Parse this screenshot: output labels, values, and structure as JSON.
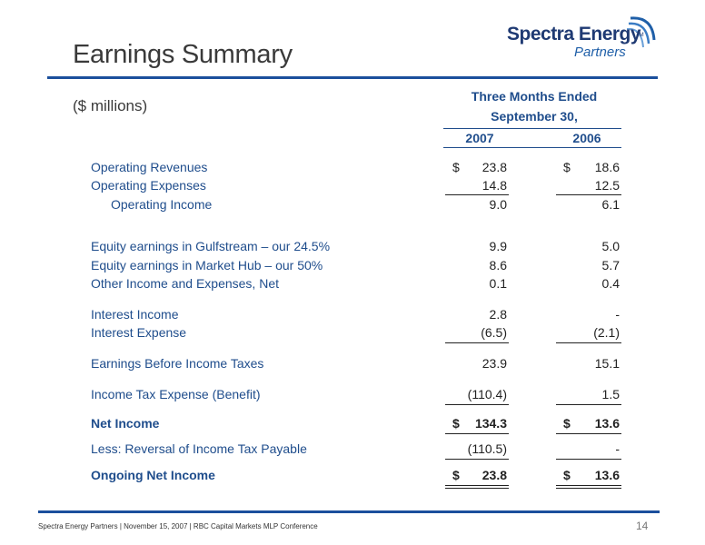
{
  "title": "Earnings Summary",
  "logo": {
    "main": "Spectra Energy",
    "tm": "TM",
    "sub": "Partners"
  },
  "units": "($ millions)",
  "header": {
    "line1": "Three Months Ended",
    "line2": "September 30,",
    "col_a": "2007",
    "col_b": "2006"
  },
  "rows": [
    {
      "label": "Operating Revenues",
      "a": "23.8",
      "b": "18.6",
      "dollar_a": "$",
      "dollar_b": "$"
    },
    {
      "label": "Operating Expenses",
      "a": "14.8",
      "b": "12.5"
    },
    {
      "label": "Operating Income",
      "a": "9.0",
      "b": "6.1"
    },
    {
      "label": "Equity earnings in Gulfstream – our 24.5%",
      "a": "9.9",
      "b": "5.0"
    },
    {
      "label": "Equity earnings in Market Hub – our 50%",
      "a": "8.6",
      "b": "5.7"
    },
    {
      "label": "Other Income and Expenses, Net",
      "a": "0.1",
      "b": "0.4"
    },
    {
      "label": "Interest Income",
      "a": "2.8",
      "b": "-"
    },
    {
      "label": "Interest Expense",
      "a": "(6.5)",
      "b": "(2.1)"
    },
    {
      "label": "Earnings Before Income Taxes",
      "a": "23.9",
      "b": "15.1"
    },
    {
      "label": "Income Tax Expense (Benefit)",
      "a": "(110.4)",
      "b": "1.5"
    },
    {
      "label": "Net Income",
      "a": "134.3",
      "b": "13.6",
      "dollar_a": "$",
      "dollar_b": "$"
    },
    {
      "label": "Less: Reversal of Income Tax Payable",
      "a": "(110.5)",
      "b": "-"
    },
    {
      "label": "Ongoing Net Income",
      "a": "23.8",
      "b": "13.6",
      "dollar_a": "$",
      "dollar_b": "$"
    }
  ],
  "footer": "Spectra Energy Partners | November 15, 2007 | RBC Capital Markets MLP Conference",
  "page_number": "14",
  "colors": {
    "accent": "#1b4f9c",
    "label": "#1f4d8c",
    "text": "#222222"
  }
}
